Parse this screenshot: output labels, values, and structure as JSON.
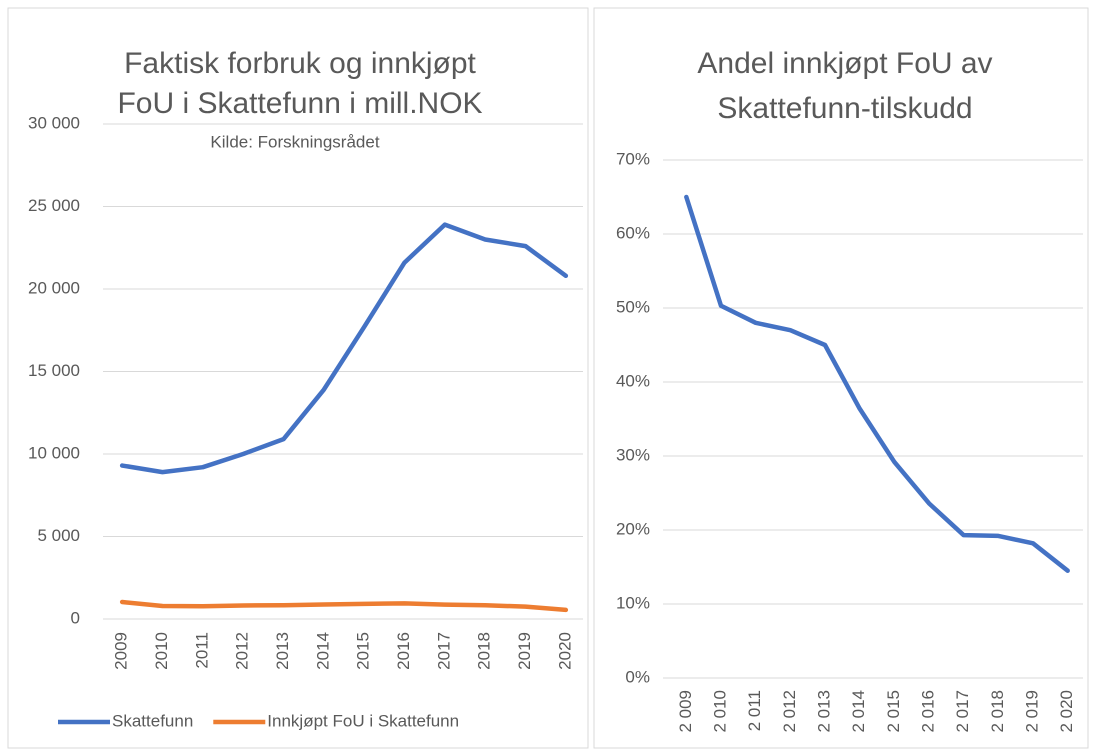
{
  "chart_data": [
    {
      "type": "line",
      "title": [
        "Faktisk forbruk og innkjøpt",
        "FoU i Skattefunn i mill.NOK"
      ],
      "subtitle": "Kilde: Forskningsrådet",
      "categories": [
        "2009",
        "2010",
        "2011",
        "2012",
        "2013",
        "2014",
        "2015",
        "2016",
        "2017",
        "2018",
        "2019",
        "2020"
      ],
      "series": [
        {
          "name": "Skattefunn",
          "color": "#4472c4",
          "values": [
            9300,
            8900,
            9200,
            10000,
            10900,
            13900,
            17700,
            21600,
            23900,
            23000,
            22600,
            20800
          ]
        },
        {
          "name": "Innkjøpt FoU i Skattefunn",
          "color": "#ed7d31",
          "values": [
            1030,
            790,
            770,
            820,
            830,
            880,
            920,
            950,
            870,
            830,
            750,
            550
          ]
        }
      ],
      "ylim": [
        0,
        30000
      ],
      "yticks": [
        0,
        {
          "value": 5000,
          "label": "5 000"
        },
        {
          "value": 10000,
          "label": "10 000"
        },
        {
          "value": 15000,
          "label": "15 000"
        },
        {
          "value": 20000,
          "label": "20 000"
        },
        {
          "value": 25000,
          "label": "25 000"
        },
        {
          "value": 30000,
          "label": "30 000"
        }
      ],
      "grid": true,
      "legend": "bottom"
    },
    {
      "type": "line",
      "title": [
        "Andel innkjøpt FoU av",
        "Skattefunn-tilskudd"
      ],
      "categories": [
        "2 009",
        "2 010",
        "2 011",
        "2 012",
        "2 013",
        "2 014",
        "2 015",
        "2 016",
        "2 017",
        "2 018",
        "2 019",
        "2 020"
      ],
      "series": [
        {
          "color": "#4472c4",
          "values": [
            65,
            50.3,
            48,
            47,
            45,
            36.4,
            29.2,
            23.6,
            19.3,
            19.2,
            18.2,
            14.5
          ]
        }
      ],
      "ylim": [
        0,
        70
      ],
      "yticks": [
        {
          "value": 0,
          "label": "0%"
        },
        {
          "value": 10,
          "label": "10%"
        },
        {
          "value": 20,
          "label": "20%"
        },
        {
          "value": 30,
          "label": "30%"
        },
        {
          "value": 40,
          "label": "40%"
        },
        {
          "value": 50,
          "label": "50%"
        },
        {
          "value": 60,
          "label": "60%"
        },
        {
          "value": 70,
          "label": "70%"
        }
      ],
      "grid": true
    }
  ]
}
